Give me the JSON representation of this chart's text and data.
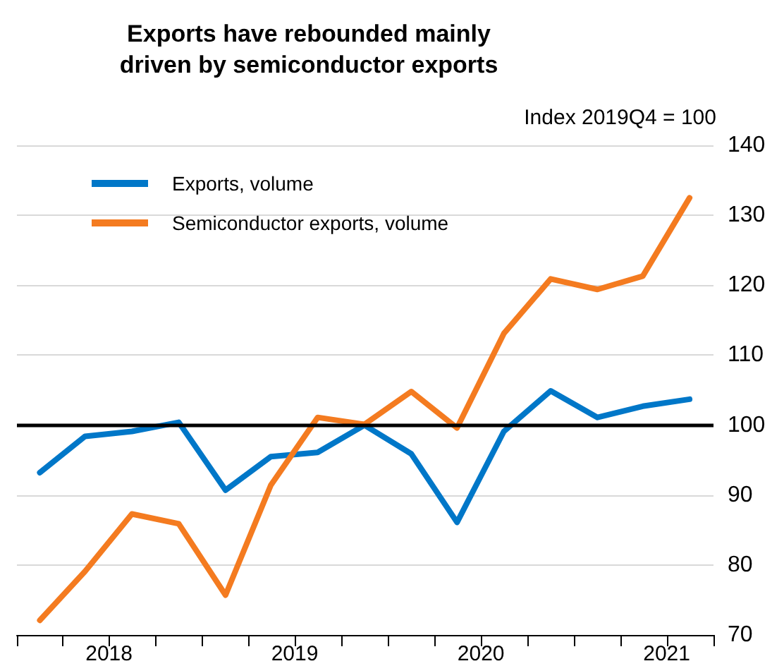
{
  "chart_data": {
    "type": "line",
    "title": "Exports have rebounded mainly\ndriven by semiconductor exports",
    "ylabel": "Index 2019Q4 = 100",
    "x": [
      "2018-02-15",
      "2018-05-15",
      "2018-08-15",
      "2018-11-15",
      "2019-02-15",
      "2019-05-15",
      "2019-08-15",
      "2019-11-15",
      "2020-02-15",
      "2020-05-15",
      "2020-08-15",
      "2020-11-15",
      "2021-02-15",
      "2021-05-15",
      "2021-08-15"
    ],
    "series": [
      {
        "name": "Exports, volume",
        "color": "#0077c8",
        "values": [
          93.2,
          98.4,
          99.1,
          100.4,
          90.7,
          95.5,
          96.1,
          100,
          95.9,
          86.1,
          99.1,
          104.9,
          101.1,
          102.7,
          103.7
        ]
      },
      {
        "name": "Semiconductor exports, volume",
        "color": "#f47b20",
        "values": [
          72.1,
          79.1,
          87.3,
          85.9,
          75.7,
          91.4,
          101.1,
          100.1,
          104.8,
          99.6,
          113.1,
          120.9,
          119.4,
          121.3,
          132.5
        ]
      }
    ],
    "xlim": [
      "2018-01-01",
      "2021-10-01"
    ],
    "xticks": [
      {
        "value": "2018-01-01",
        "label": null
      },
      {
        "value": "2018-04-01",
        "label": null
      },
      {
        "value": "2018-07-01",
        "label": "2018"
      },
      {
        "value": "2018-10-01",
        "label": null
      },
      {
        "value": "2019-01-01",
        "label": null
      },
      {
        "value": "2019-04-01",
        "label": null
      },
      {
        "value": "2019-07-01",
        "label": "2019"
      },
      {
        "value": "2019-10-01",
        "label": null
      },
      {
        "value": "2020-01-01",
        "label": null
      },
      {
        "value": "2020-04-01",
        "label": null
      },
      {
        "value": "2020-07-01",
        "label": "2020"
      },
      {
        "value": "2020-10-01",
        "label": null
      },
      {
        "value": "2021-01-01",
        "label": null
      },
      {
        "value": "2021-04-01",
        "label": null
      },
      {
        "value": "2021-07-01",
        "label": "2021"
      },
      {
        "value": "2021-10-01",
        "label": null
      }
    ],
    "ylim": [
      70,
      140
    ],
    "yticks": [
      70,
      80,
      90,
      100,
      110,
      120,
      130,
      140
    ],
    "ref_lines": [
      {
        "axis": "y",
        "value": 100,
        "color": "#000000"
      }
    ],
    "grid": "y",
    "legend": "top left",
    "marker": "none",
    "line_style": "solid"
  }
}
